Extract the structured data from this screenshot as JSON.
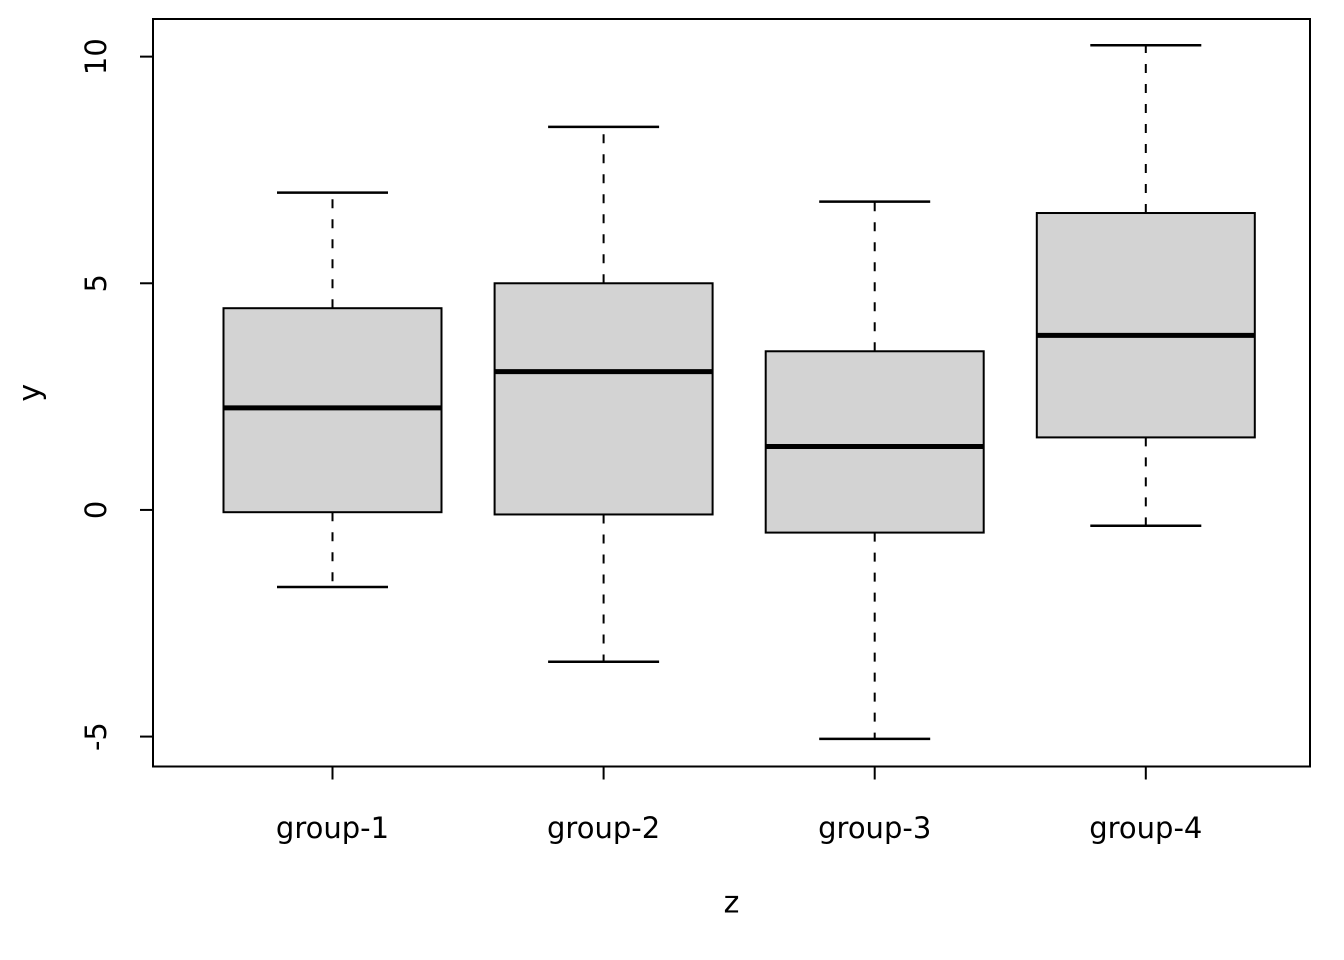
{
  "chart_data": {
    "type": "boxplot",
    "title": "",
    "xlabel": "z",
    "ylabel": "y",
    "categories": [
      "group-1",
      "group-2",
      "group-3",
      "group-4"
    ],
    "y_ticks": [
      -5,
      0,
      5,
      10
    ],
    "y_tick_labels": [
      "-5",
      "0",
      "5",
      "10"
    ],
    "ylim": [
      -5.66,
      10.83
    ],
    "grid": false,
    "legend": "none",
    "box_fill": "#d3d3d3",
    "line_color": "#000000",
    "background": "#ffffff",
    "series": [
      {
        "name": "group-1",
        "min": -1.7,
        "q1": -0.05,
        "median": 2.25,
        "q3": 4.45,
        "max": 7.0
      },
      {
        "name": "group-2",
        "min": -3.35,
        "q1": -0.1,
        "median": 3.05,
        "q3": 5.0,
        "max": 8.45
      },
      {
        "name": "group-3",
        "min": -5.05,
        "q1": -0.5,
        "median": 1.4,
        "q3": 3.5,
        "max": 6.8
      },
      {
        "name": "group-4",
        "min": -0.35,
        "q1": 1.6,
        "median": 3.85,
        "q3": 6.55,
        "max": 10.25
      }
    ]
  }
}
